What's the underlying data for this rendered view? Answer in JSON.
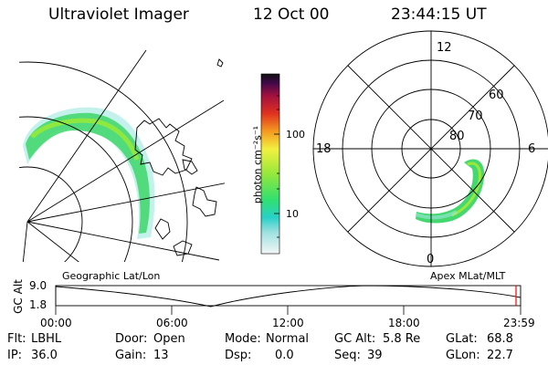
{
  "header": {
    "instrument": "Ultraviolet Imager",
    "date": "12 Oct 00",
    "time": "23:44:15 UT"
  },
  "colorbar": {
    "unit_label": "photon cm⁻²s⁻¹",
    "ticks": [
      "100",
      "10"
    ]
  },
  "polar_plot": {
    "hour_labels": [
      "12",
      "18",
      "6",
      "0"
    ],
    "lat_labels": [
      "60",
      "70",
      "80"
    ]
  },
  "altitude_plot": {
    "axis_title": "GC Alt",
    "y_ticks": [
      "9.0",
      "1.8"
    ],
    "left_caption": "Geographic Lat/Lon",
    "right_caption": "Apex MLat/MLT",
    "x_ticks": [
      "00:00",
      "06:00",
      "12:00",
      "18:00",
      "23:59"
    ],
    "marker_color": "#ff0000"
  },
  "footer": {
    "row1": [
      {
        "label": "Flt:",
        "value": "LBHL"
      },
      {
        "label": "Door:",
        "value": "Open"
      },
      {
        "label": "Mode:",
        "value": "Normal"
      },
      {
        "label": "GC Alt:",
        "value": "5.8 Re"
      },
      {
        "label": "GLat:",
        "value": "68.8"
      }
    ],
    "row2": [
      {
        "label": "IP:",
        "value": "36.0"
      },
      {
        "label": "Gain:",
        "value": "13"
      },
      {
        "label": "Dsp:",
        "value": "0.0"
      },
      {
        "label": "Seq:",
        "value": "39"
      },
      {
        "label": "GLon:",
        "value": "22.7"
      }
    ]
  },
  "colors": {
    "gradient": [
      "#e8f4f4",
      "#2ad0c8",
      "#30e070",
      "#9ae83a",
      "#f2f040",
      "#f59a20",
      "#e03020",
      "#a01030",
      "#400040",
      "#101010"
    ]
  }
}
